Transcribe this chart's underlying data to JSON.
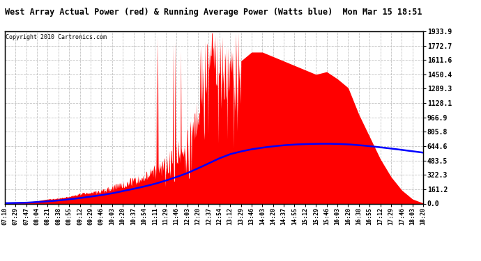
{
  "title": "West Array Actual Power (red) & Running Average Power (Watts blue)  Mon Mar 15 18:51",
  "copyright": "Copyright 2010 Cartronics.com",
  "y_max": 1933.9,
  "y_ticks": [
    0.0,
    161.2,
    322.3,
    483.5,
    644.6,
    805.8,
    966.9,
    1128.1,
    1289.3,
    1450.4,
    1611.6,
    1772.7,
    1933.9
  ],
  "background_color": "#ffffff",
  "grid_color": "#bbbbbb",
  "actual_color": "#ff0000",
  "avg_color": "#0000ff",
  "x_labels": [
    "07:10",
    "07:29",
    "07:47",
    "08:04",
    "08:21",
    "08:38",
    "08:55",
    "09:12",
    "09:29",
    "09:46",
    "10:03",
    "10:20",
    "10:37",
    "10:54",
    "11:11",
    "11:29",
    "11:46",
    "12:03",
    "12:20",
    "12:37",
    "12:54",
    "13:12",
    "13:29",
    "13:46",
    "14:03",
    "14:20",
    "14:37",
    "14:55",
    "15:12",
    "15:29",
    "15:46",
    "16:03",
    "16:20",
    "16:38",
    "16:55",
    "17:12",
    "17:29",
    "17:46",
    "18:03",
    "18:20"
  ],
  "actual_power": [
    10,
    12,
    15,
    30,
    50,
    60,
    80,
    110,
    130,
    160,
    200,
    250,
    290,
    340,
    430,
    550,
    700,
    850,
    1200,
    1933,
    1933,
    1750,
    1600,
    1700,
    1700,
    1650,
    1600,
    1550,
    1500,
    1450,
    1480,
    1400,
    1300,
    1000,
    750,
    500,
    300,
    150,
    50,
    5
  ],
  "running_avg": [
    5,
    8,
    10,
    18,
    25,
    35,
    48,
    62,
    78,
    95,
    115,
    140,
    165,
    192,
    222,
    258,
    298,
    342,
    395,
    452,
    508,
    555,
    585,
    610,
    628,
    643,
    655,
    663,
    668,
    671,
    672,
    670,
    665,
    656,
    645,
    632,
    618,
    603,
    588,
    572
  ]
}
